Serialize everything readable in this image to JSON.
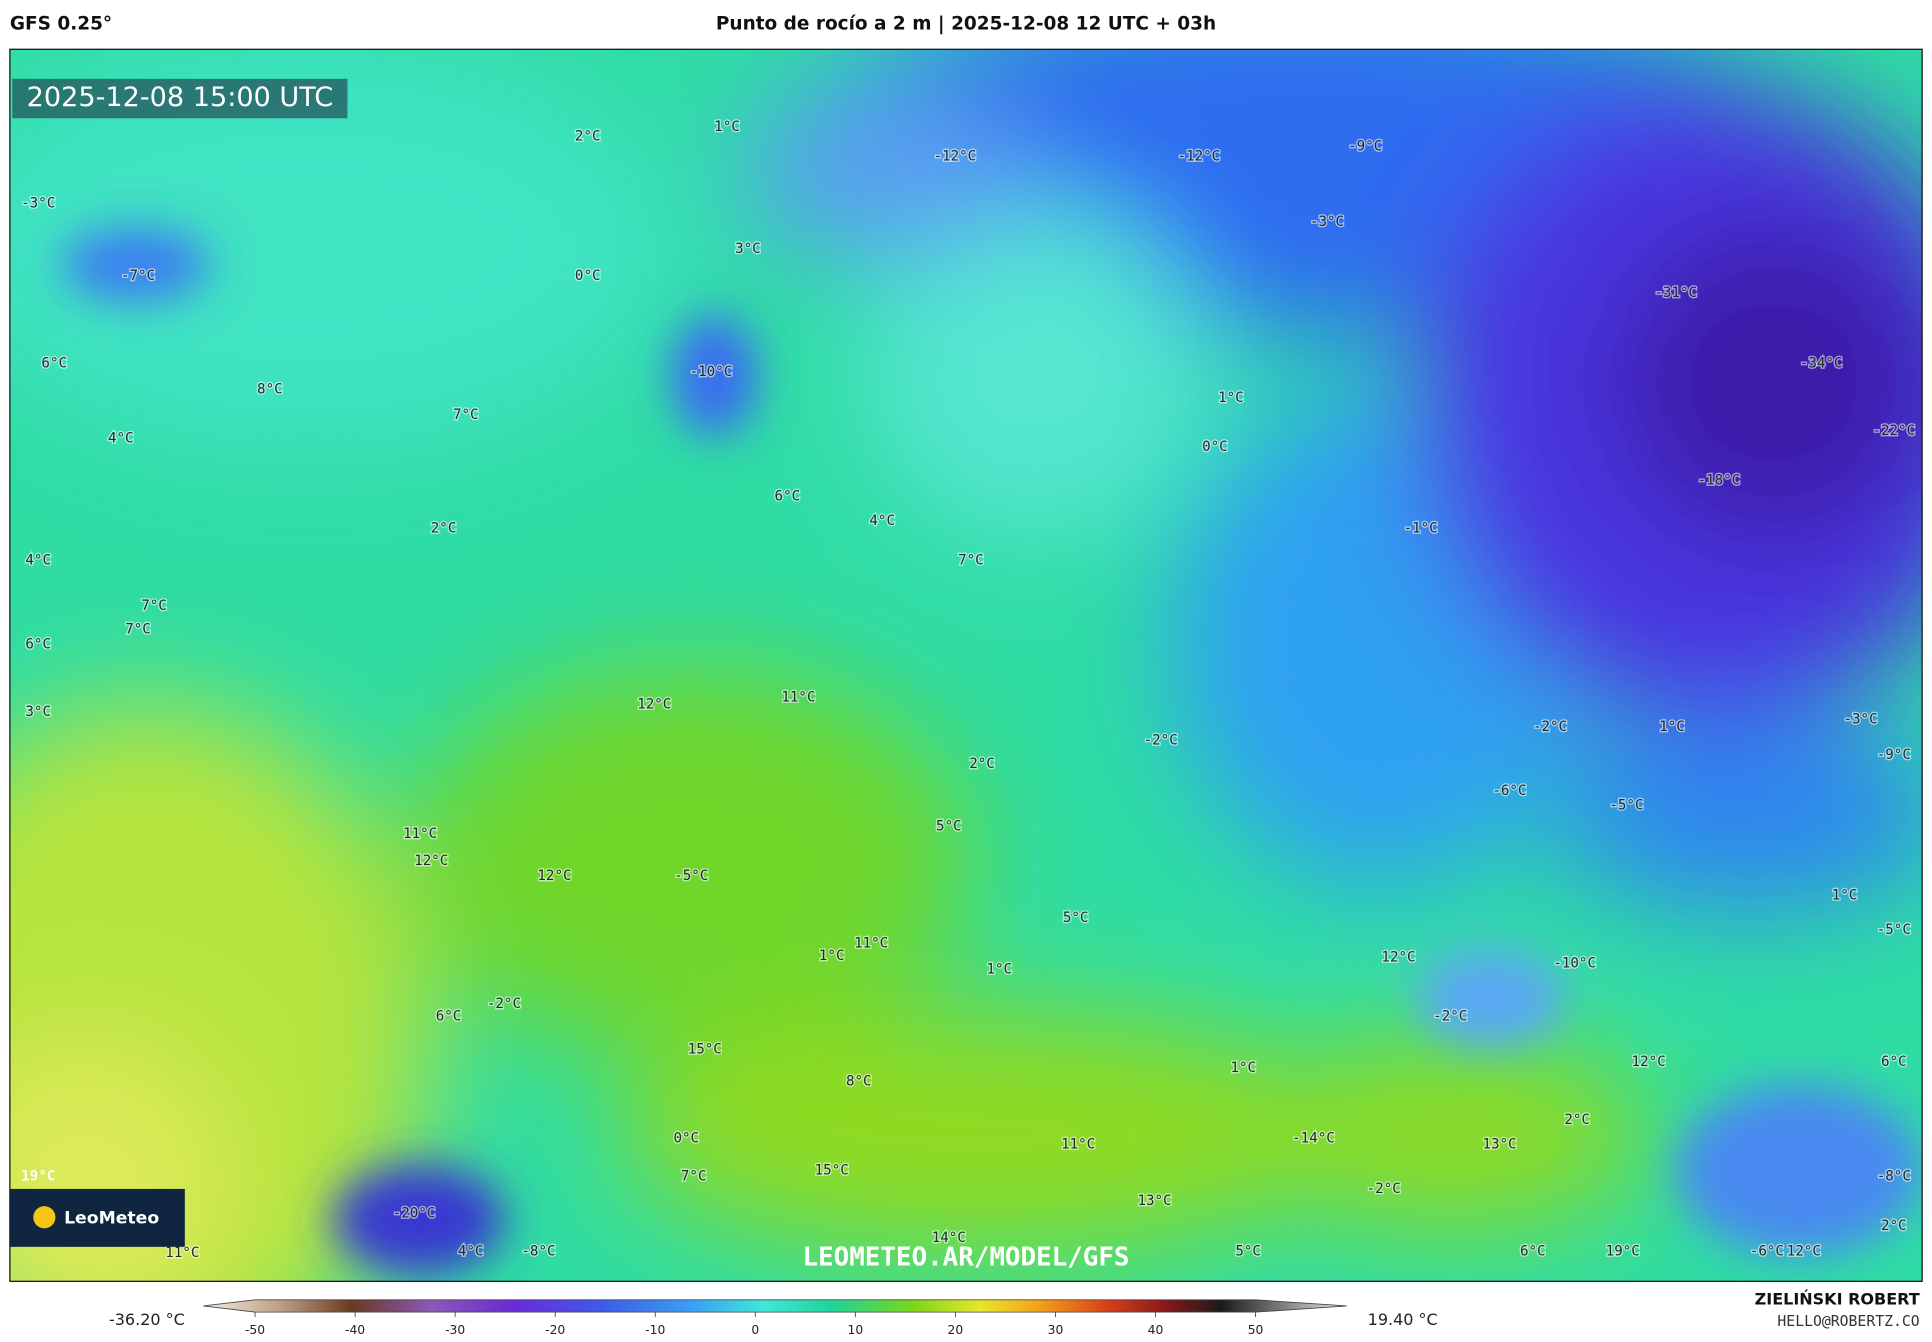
{
  "header": {
    "model": "GFS 0.25°",
    "title": "Punto de rocío a 2 m | 2025-12-08 12 UTC + 03h"
  },
  "map": {
    "valid_time": "2025-12-08 15:00 UTC",
    "labels": [
      "2°C",
      "1°C",
      "-12°C",
      "-12°C",
      "-9°C",
      "-3°C",
      "-3°C",
      "3°C",
      "-7°C",
      "0°C",
      "-31°C",
      "6°C",
      "-34°C",
      "-10°C",
      "8°C",
      "1°C",
      "7°C",
      "-22°C",
      "4°C",
      "0°C",
      "-18°C",
      "6°C",
      "4°C",
      "2°C",
      "-1°C",
      "4°C",
      "7°C",
      "7°C",
      "7°C",
      "6°C",
      "11°C",
      "12°C",
      "3°C",
      "-2°C",
      "1°C",
      "-3°C",
      "-2°C",
      "2°C",
      "-9°C",
      "-6°C",
      "-5°C",
      "5°C",
      "11°C",
      "12°C",
      "12°C",
      "-5°C",
      "1°C",
      "5°C",
      "-5°C",
      "11°C",
      "1°C",
      "12°C",
      "-10°C",
      "1°C",
      "-2°C",
      "6°C",
      "-2°C",
      "15°C",
      "12°C",
      "6°C",
      "1°C",
      "8°C",
      "2°C",
      "0°C",
      "-14°C",
      "11°C",
      "13°C",
      "15°C",
      "19°C",
      "7°C",
      "-8°C",
      "-2°C",
      "13°C",
      "-20°C",
      "14°C",
      "11°C",
      "4°C",
      "-8°C",
      "5°C",
      "6°C",
      "19°C",
      "-6°C",
      "12°C",
      "2°C"
    ],
    "watermark": "LEOMETEO.AR/MODEL/GFS",
    "logo": "LeoMeteo"
  },
  "colorbar": {
    "min_label": "-36.20 °C",
    "ticks": [
      -50,
      -40,
      -30,
      -20,
      -10,
      0,
      10,
      20,
      30,
      40,
      50
    ],
    "max_label": "19.40 °C"
  },
  "footer": {
    "author": "ZIELIŃSKI ROBERT",
    "contact": "HELLO@ROBERTZ.CO"
  }
}
